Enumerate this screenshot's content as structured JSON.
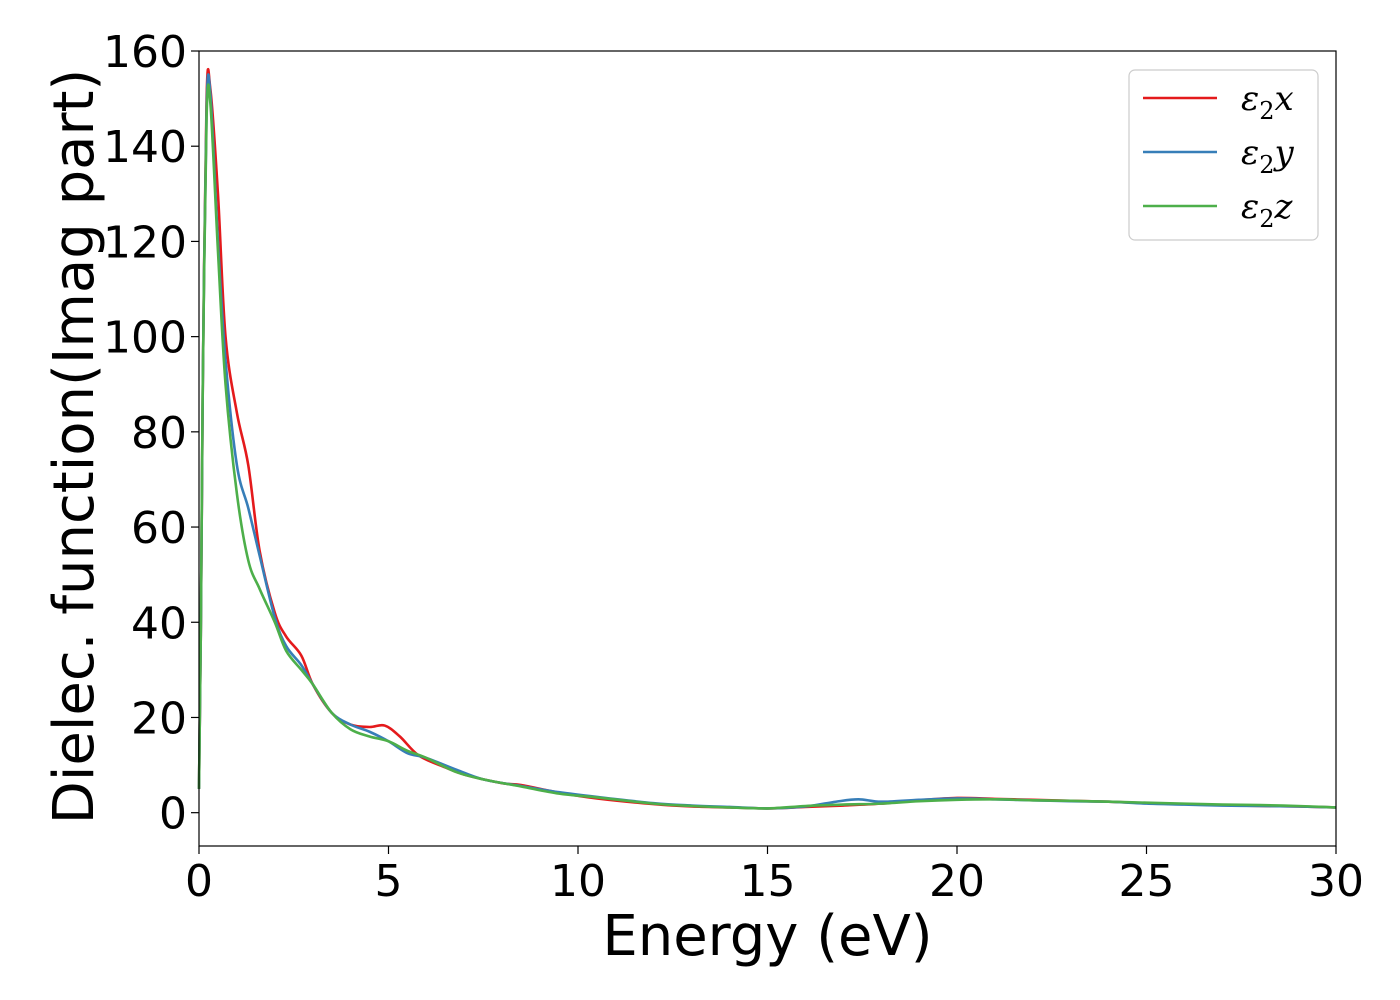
{
  "chart_data": {
    "type": "line",
    "title": "",
    "xlabel": "Energy (eV)",
    "ylabel": "Dielec. function(Imag part)",
    "xlim": [
      0,
      30
    ],
    "ylim": [
      -7,
      160
    ],
    "xticks": [
      0,
      5,
      10,
      15,
      20,
      25,
      30
    ],
    "yticks": [
      0,
      20,
      40,
      60,
      80,
      100,
      120,
      140,
      160
    ],
    "grid": false,
    "legend_position": "top-right",
    "series": [
      {
        "name": "ε₂x",
        "legend_base": "ε",
        "legend_sub": "2",
        "legend_suffix": "x",
        "color": "#e41a1c",
        "x": [
          0,
          0.05,
          0.1,
          0.2,
          0.3,
          0.5,
          0.7,
          1.0,
          1.3,
          1.6,
          2.0,
          2.3,
          2.7,
          3.0,
          3.5,
          4.0,
          4.5,
          4.9,
          5.3,
          5.8,
          6.5,
          7.0,
          8.0,
          8.5,
          9.5,
          10.5,
          12.0,
          13.0,
          14.0,
          15.0,
          16.0,
          17.0,
          18.0,
          19.0,
          20.0,
          21.0,
          22.0,
          23.0,
          24.0,
          25.0,
          26.0,
          27.0,
          28.0,
          29.0,
          30.0
        ],
        "y": [
          5,
          40,
          90,
          150,
          152,
          130,
          100,
          84,
          73,
          55,
          42,
          37,
          33,
          27,
          21,
          18.5,
          18,
          18.3,
          16,
          12,
          9.5,
          8,
          6.2,
          5.8,
          4.2,
          3,
          1.8,
          1.3,
          1.1,
          0.9,
          1.2,
          1.5,
          1.9,
          2.6,
          3.1,
          2.9,
          2.7,
          2.5,
          2.3,
          2,
          1.8,
          1.6,
          1.4,
          1.3,
          1.1
        ]
      },
      {
        "name": "ε₂y",
        "legend_base": "ε",
        "legend_sub": "2",
        "legend_suffix": "y",
        "color": "#377eb8",
        "x": [
          0,
          0.05,
          0.1,
          0.2,
          0.3,
          0.5,
          0.7,
          1.0,
          1.3,
          1.6,
          2.0,
          2.3,
          2.7,
          3.0,
          3.5,
          4.0,
          4.5,
          5.0,
          5.5,
          6.0,
          6.8,
          7.5,
          8.5,
          9.5,
          10.5,
          12.0,
          13.0,
          14.0,
          15.0,
          16.0,
          16.8,
          17.4,
          18.0,
          19.0,
          20.0,
          21.0,
          22.0,
          23.0,
          24.0,
          25.0,
          26.0,
          27.0,
          28.0,
          29.0,
          30.0
        ],
        "y": [
          5,
          40,
          90,
          148,
          151,
          120,
          95,
          73,
          64,
          54,
          41,
          35,
          31,
          27,
          21,
          18.5,
          17,
          15,
          12.5,
          11.5,
          9,
          7,
          5.6,
          4.3,
          3.3,
          2,
          1.5,
          1.2,
          0.9,
          1.3,
          2.3,
          2.8,
          2.3,
          2.7,
          3,
          2.8,
          2.6,
          2.4,
          2.3,
          1.9,
          1.7,
          1.5,
          1.4,
          1.3,
          1.1
        ]
      },
      {
        "name": "ε₂z",
        "legend_base": "ε",
        "legend_sub": "2",
        "legend_suffix": "z",
        "color": "#4daf4a",
        "x": [
          0,
          0.05,
          0.1,
          0.2,
          0.3,
          0.5,
          0.7,
          1.0,
          1.3,
          1.6,
          2.0,
          2.3,
          2.7,
          3.0,
          3.5,
          4.0,
          4.5,
          5.0,
          5.5,
          6.0,
          6.8,
          7.5,
          8.5,
          9.5,
          10.5,
          12.0,
          13.0,
          14.0,
          15.0,
          16.0,
          17.0,
          18.0,
          19.0,
          20.0,
          21.0,
          22.0,
          23.0,
          24.0,
          25.0,
          26.0,
          27.0,
          28.0,
          29.0,
          30.0
        ],
        "y": [
          5,
          40,
          90,
          146,
          149,
          118,
          90,
          67,
          53,
          47,
          40,
          34,
          30,
          27,
          21,
          17.5,
          16,
          15,
          13,
          11.5,
          8.5,
          7,
          5.5,
          4,
          3.2,
          1.9,
          1.4,
          1.1,
          0.9,
          1.4,
          1.7,
          1.9,
          2.4,
          2.7,
          2.8,
          2.6,
          2.5,
          2.3,
          2.1,
          1.9,
          1.7,
          1.6,
          1.4,
          1.1
        ]
      }
    ]
  }
}
